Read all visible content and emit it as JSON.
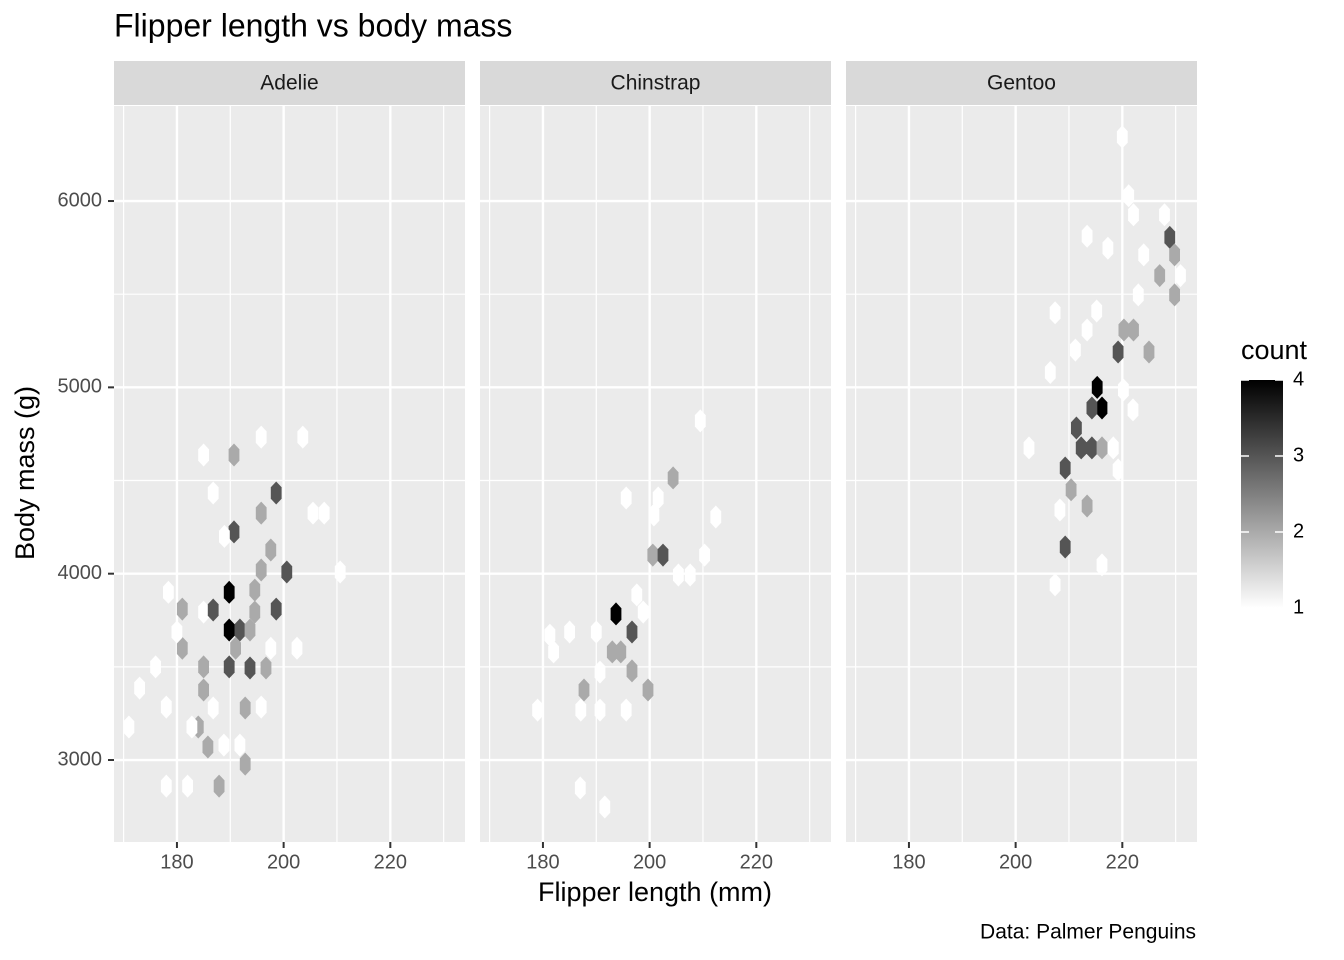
{
  "chart_data": {
    "type": "hexbin",
    "title": "Flipper length vs body mass",
    "x_label": "Flipper length (mm)",
    "y_label": "Body mass (g)",
    "caption": "Data: Palmer Penguins",
    "xlim": [
      168.2,
      234.0
    ],
    "ylim": [
      2560,
      6510
    ],
    "xticks": [
      180,
      200,
      220
    ],
    "yticks": [
      3000,
      4000,
      5000,
      6000
    ],
    "xminor": [
      170,
      190,
      210,
      230
    ],
    "yminor": [
      3500,
      4500,
      5500
    ],
    "legend_title": "count",
    "clim": [
      1,
      4
    ],
    "cticks": [
      1,
      2,
      3,
      4
    ],
    "fill_low": "#ffffff",
    "fill_high": "#000000",
    "facets": [
      {
        "name": "Adelie",
        "x": [
          171,
          173,
          176,
          178,
          178.4,
          181,
          181,
          180,
          185,
          186.8,
          185,
          185,
          184,
          185.8,
          187.9,
          178,
          182,
          189.8,
          189.8,
          191.8,
          189.8,
          191,
          190.7,
          190.7,
          192.8,
          193.7,
          195.8,
          197.6,
          196.7,
          198.6,
          198.6,
          200.6,
          194.6,
          194.6,
          195.8,
          188.9,
          186.8,
          185,
          195.8,
          203.6,
          205.5,
          207.6,
          210.6,
          202.5,
          195.8,
          182.8,
          191.8,
          188.8,
          186.8,
          192.8,
          193.7,
          197.6
        ],
        "y": [
          3177,
          3386,
          3500,
          3284,
          3900,
          3810,
          3600,
          3687,
          3794,
          3805,
          3500,
          3376,
          3177,
          3070,
          2860,
          2860,
          2860,
          3900,
          3698,
          3698,
          3500,
          3600,
          4224,
          4637,
          2978,
          3494,
          4325,
          4127,
          3494,
          3810,
          4433,
          4009,
          3912,
          3794,
          4020,
          4200,
          4433,
          4637,
          4733,
          4733,
          4325,
          4325,
          4009,
          3600,
          3284,
          3177,
          3080,
          3080,
          3279,
          3279,
          3698,
          3600
        ],
        "count": [
          1,
          1,
          1,
          1,
          1,
          2,
          2,
          1,
          1,
          3,
          2,
          2,
          2,
          2,
          2,
          1,
          1,
          4,
          4,
          3,
          3,
          2,
          3,
          2,
          2,
          3,
          2,
          2,
          2,
          3,
          3,
          3,
          2,
          2,
          2,
          1,
          1,
          1,
          1,
          1,
          1,
          1,
          1,
          1,
          1,
          1,
          1,
          1,
          1,
          2,
          2,
          1
        ]
      },
      {
        "name": "Chinstrap",
        "x": [
          179,
          181.3,
          182,
          185,
          187,
          187.7,
          187.1,
          190.7,
          191.6,
          190,
          193,
          193.7,
          194.6,
          195.6,
          196.7,
          196.7,
          197.6,
          198.8,
          199.7,
          200.8,
          201.6,
          200.6,
          202.5,
          204.4,
          205.4,
          207.6,
          210.3,
          212.4,
          209.5,
          195.6,
          190.7
        ],
        "y": [
          3268,
          3670,
          3580,
          3687,
          2850,
          3376,
          3268,
          3268,
          2748,
          3687,
          3580,
          3784,
          3580,
          4406,
          3687,
          3478,
          3886,
          3794,
          3376,
          4315,
          4406,
          4100,
          4100,
          4514,
          3993,
          3993,
          4100,
          4304,
          4820,
          3268,
          3472
        ],
        "count": [
          1,
          1,
          1,
          1,
          1,
          2,
          1,
          1,
          1,
          1,
          2,
          4,
          2,
          1,
          3,
          2,
          1,
          1,
          2,
          1,
          1,
          2,
          3,
          2,
          1,
          1,
          1,
          1,
          1,
          1,
          1
        ]
      },
      {
        "name": "Gentoo",
        "x": [
          202.5,
          207.4,
          206.5,
          207.4,
          209.3,
          209.3,
          210.4,
          211.4,
          212.3,
          213.4,
          214.3,
          215.3,
          216.2,
          214.3,
          216.2,
          216.2,
          218.3,
          219.2,
          220.3,
          222.1,
          225,
          217.3,
          213.4,
          220,
          221.2,
          222.1,
          224,
          227,
          228.9,
          229.8,
          229.8,
          230.9,
          227.9,
          211.2,
          220.2,
          222,
          219.2,
          208.3,
          215.2,
          223,
          213.4
        ],
        "y": [
          4675,
          3940,
          5080,
          5400,
          4143,
          4567,
          4450,
          4782,
          4675,
          4363,
          4675,
          5000,
          4889,
          4889,
          4675,
          4047,
          4675,
          5190,
          5308,
          5308,
          5190,
          5747,
          5811,
          6344,
          6028,
          5926,
          5711,
          5600,
          5805,
          5711,
          5496,
          5600,
          5926,
          5200,
          4986,
          4879,
          4557,
          4342,
          5410,
          5496,
          5308
        ],
        "count": [
          1,
          1,
          1,
          1,
          3,
          3,
          2,
          3,
          3,
          2,
          3,
          4,
          4,
          3,
          2,
          1,
          1,
          3,
          2,
          2,
          2,
          1,
          1,
          1,
          1,
          1,
          1,
          2,
          3,
          2,
          2,
          1,
          1,
          1,
          1,
          1,
          1,
          1,
          1,
          1,
          1
        ]
      }
    ]
  }
}
